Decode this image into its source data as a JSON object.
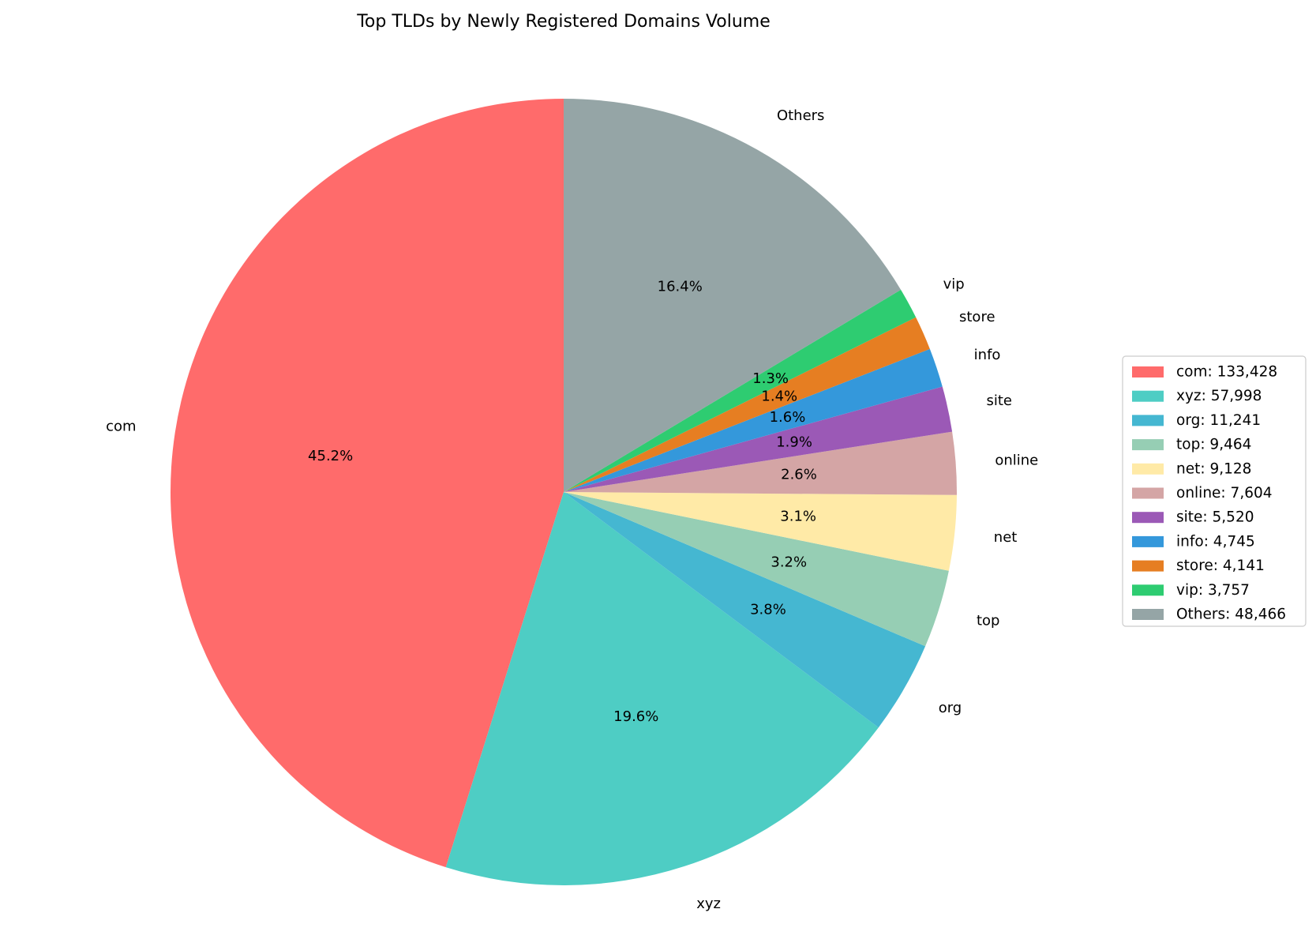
{
  "chart_data": {
    "type": "pie",
    "title": "Top TLDs by Newly Registered Domains Volume",
    "start_angle_deg": 90,
    "direction": "counterclockwise",
    "legend_position": "right",
    "slices": [
      {
        "label": "com",
        "value": 133428,
        "pct_label": "45.2%",
        "legend_label": "com: 133,428",
        "color": "#FF6B6B"
      },
      {
        "label": "xyz",
        "value": 57998,
        "pct_label": "19.6%",
        "legend_label": "xyz: 57,998",
        "color": "#4ECDC4"
      },
      {
        "label": "org",
        "value": 11241,
        "pct_label": "3.8%",
        "legend_label": "org: 11,241",
        "color": "#45B7D1"
      },
      {
        "label": "top",
        "value": 9464,
        "pct_label": "3.2%",
        "legend_label": "top: 9,464",
        "color": "#96CEB4"
      },
      {
        "label": "net",
        "value": 9128,
        "pct_label": "3.1%",
        "legend_label": "net: 9,128",
        "color": "#FFEAA7"
      },
      {
        "label": "online",
        "value": 7604,
        "pct_label": "2.6%",
        "legend_label": "online: 7,604",
        "color": "#D4A5A5"
      },
      {
        "label": "site",
        "value": 5520,
        "pct_label": "1.9%",
        "legend_label": "site: 5,520",
        "color": "#9B59B6"
      },
      {
        "label": "info",
        "value": 4745,
        "pct_label": "1.6%",
        "legend_label": "info: 4,745",
        "color": "#3498DB"
      },
      {
        "label": "store",
        "value": 4141,
        "pct_label": "1.4%",
        "legend_label": "store: 4,141",
        "color": "#E67E22"
      },
      {
        "label": "vip",
        "value": 3757,
        "pct_label": "1.3%",
        "legend_label": "vip: 3,757",
        "color": "#2ECC71"
      },
      {
        "label": "Others",
        "value": 48466,
        "pct_label": "16.4%",
        "legend_label": "Others: 48,466",
        "color": "#95A5A6"
      }
    ]
  }
}
